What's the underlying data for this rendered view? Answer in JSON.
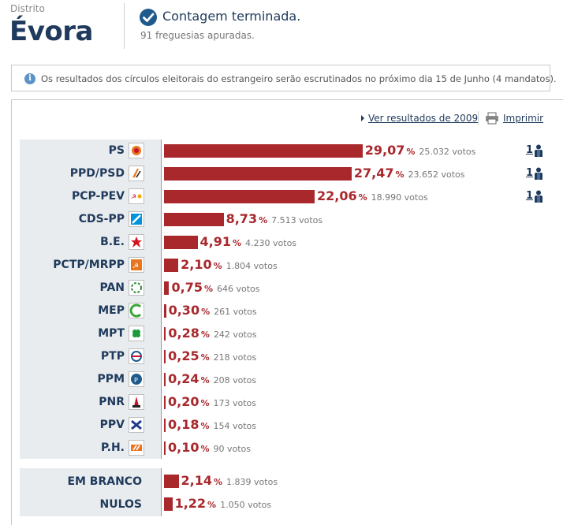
{
  "header": {
    "district_label": "Distrito",
    "district_name": "Évora",
    "status": "Contagem terminada.",
    "parishes": "91 freguesias apuradas."
  },
  "notice": {
    "icon": "info-icon",
    "text": "Os resultados dos círculos eleitorais do estrangeiro serão escrutinados no próximo dia 15 de Junho (4 mandatos)."
  },
  "tools": {
    "results_2009": "Ver resultados de 2009",
    "print": "Imprimir"
  },
  "colors": {
    "bar": "#a8282c",
    "title": "#1f3a5c",
    "panel": "#e9ecee"
  },
  "pct_symbol": "%",
  "parties": [
    {
      "name": "PS",
      "pct": "29,07",
      "pct_value": 29.07,
      "votes": "25.032 votos",
      "seats": "1",
      "logo": "ps-logo-icon"
    },
    {
      "name": "PPD/PSD",
      "pct": "27,47",
      "pct_value": 27.47,
      "votes": "23.652 votos",
      "seats": "1",
      "logo": "psd-logo-icon"
    },
    {
      "name": "PCP-PEV",
      "pct": "22,06",
      "pct_value": 22.06,
      "votes": "18.990 votos",
      "seats": "1",
      "logo": "cdu-logo-icon"
    },
    {
      "name": "CDS-PP",
      "pct": "8,73",
      "pct_value": 8.73,
      "votes": "7.513 votos",
      "seats": "",
      "logo": "cds-logo-icon"
    },
    {
      "name": "B.E.",
      "pct": "4,91",
      "pct_value": 4.91,
      "votes": "4.230 votos",
      "seats": "",
      "logo": "be-logo-icon"
    },
    {
      "name": "PCTP/MRPP",
      "pct": "2,10",
      "pct_value": 2.1,
      "votes": "1.804 votos",
      "seats": "",
      "logo": "pctp-logo-icon"
    },
    {
      "name": "PAN",
      "pct": "0,75",
      "pct_value": 0.75,
      "votes": "646 votos",
      "seats": "",
      "logo": "pan-logo-icon"
    },
    {
      "name": "MEP",
      "pct": "0,30",
      "pct_value": 0.3,
      "votes": "261 votos",
      "seats": "",
      "logo": "mep-logo-icon"
    },
    {
      "name": "MPT",
      "pct": "0,28",
      "pct_value": 0.28,
      "votes": "242 votos",
      "seats": "",
      "logo": "mpt-logo-icon"
    },
    {
      "name": "PTP",
      "pct": "0,25",
      "pct_value": 0.25,
      "votes": "218 votos",
      "seats": "",
      "logo": "ptp-logo-icon"
    },
    {
      "name": "PPM",
      "pct": "0,24",
      "pct_value": 0.24,
      "votes": "208 votos",
      "seats": "",
      "logo": "ppm-logo-icon"
    },
    {
      "name": "PNR",
      "pct": "0,20",
      "pct_value": 0.2,
      "votes": "173 votos",
      "seats": "",
      "logo": "pnr-logo-icon"
    },
    {
      "name": "PPV",
      "pct": "0,18",
      "pct_value": 0.18,
      "votes": "154 votos",
      "seats": "",
      "logo": "ppv-logo-icon"
    },
    {
      "name": "P.H.",
      "pct": "0,10",
      "pct_value": 0.1,
      "votes": "90 votos",
      "seats": "",
      "logo": "ph-logo-icon"
    }
  ],
  "extras": [
    {
      "name": "EM BRANCO",
      "pct": "2,14",
      "pct_value": 2.14,
      "votes": "1.839 votos"
    },
    {
      "name": "NULOS",
      "pct": "1,22",
      "pct_value": 1.22,
      "votes": "1.050 votos"
    }
  ]
}
